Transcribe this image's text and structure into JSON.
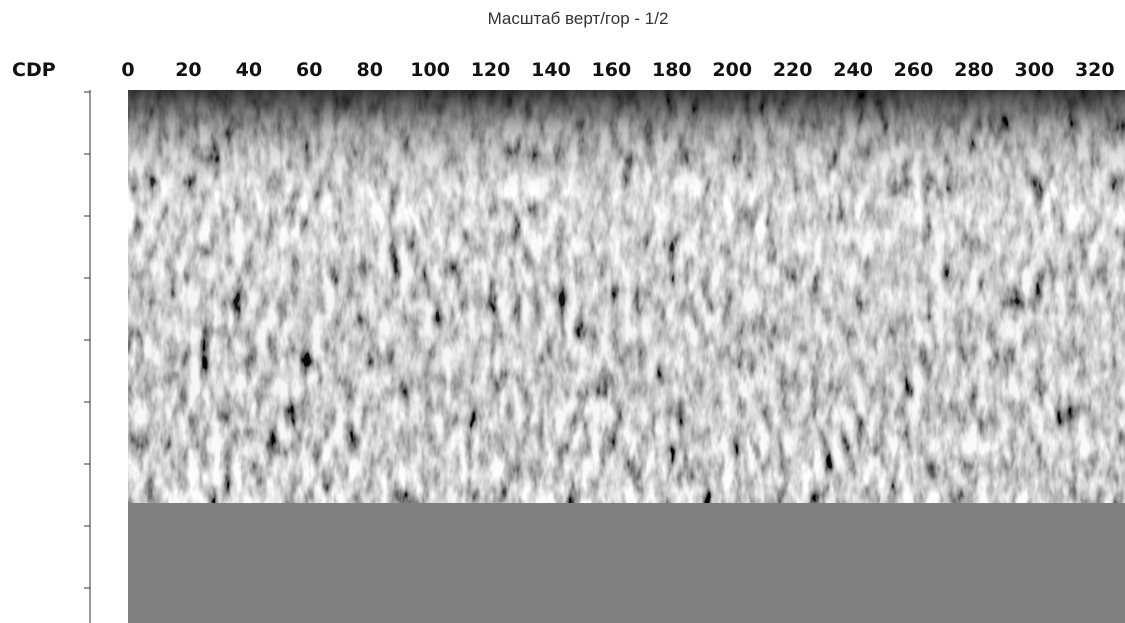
{
  "chart_data": {
    "type": "radargram",
    "title": "Масштаб верт/гор - 1/2",
    "x_label": "CDP",
    "xlim": [
      0,
      330
    ],
    "xticks": [
      0,
      20,
      40,
      60,
      80,
      100,
      120,
      140,
      160,
      180,
      200,
      220,
      240,
      260,
      280,
      300,
      320
    ]
  }
}
